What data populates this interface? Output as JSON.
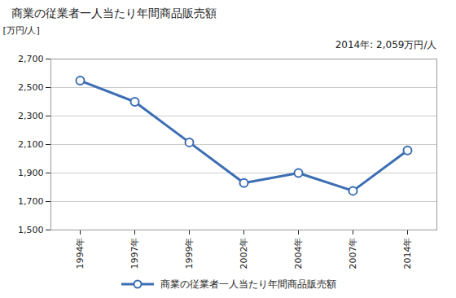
{
  "chart_data": {
    "type": "line",
    "title": "商業の従業者一人当たり年間商品販売額",
    "y_label": "[万円/人]",
    "annotation": "2014年: 2,059万円/人",
    "categories": [
      "1994年",
      "1997年",
      "1999年",
      "2002年",
      "2004年",
      "2007年",
      "2014年"
    ],
    "series": [
      {
        "name": "商業の従業者一人当たり年間商品販売額",
        "color": "#3c6eb4",
        "marker": "circle",
        "values": [
          2548,
          2400,
          2115,
          1830,
          1900,
          1775,
          2059
        ]
      }
    ],
    "ylim": [
      1500,
      2700
    ],
    "yticks": [
      {
        "value": 1500,
        "label": "1,500"
      },
      {
        "value": 1700,
        "label": "1,700"
      },
      {
        "value": 1900,
        "label": "1,900"
      },
      {
        "value": 2100,
        "label": "2,100"
      },
      {
        "value": 2300,
        "label": "2,300"
      },
      {
        "value": 2500,
        "label": "2,500"
      },
      {
        "value": 2700,
        "label": "2,700"
      }
    ],
    "grid": true,
    "legend": "bottom"
  }
}
